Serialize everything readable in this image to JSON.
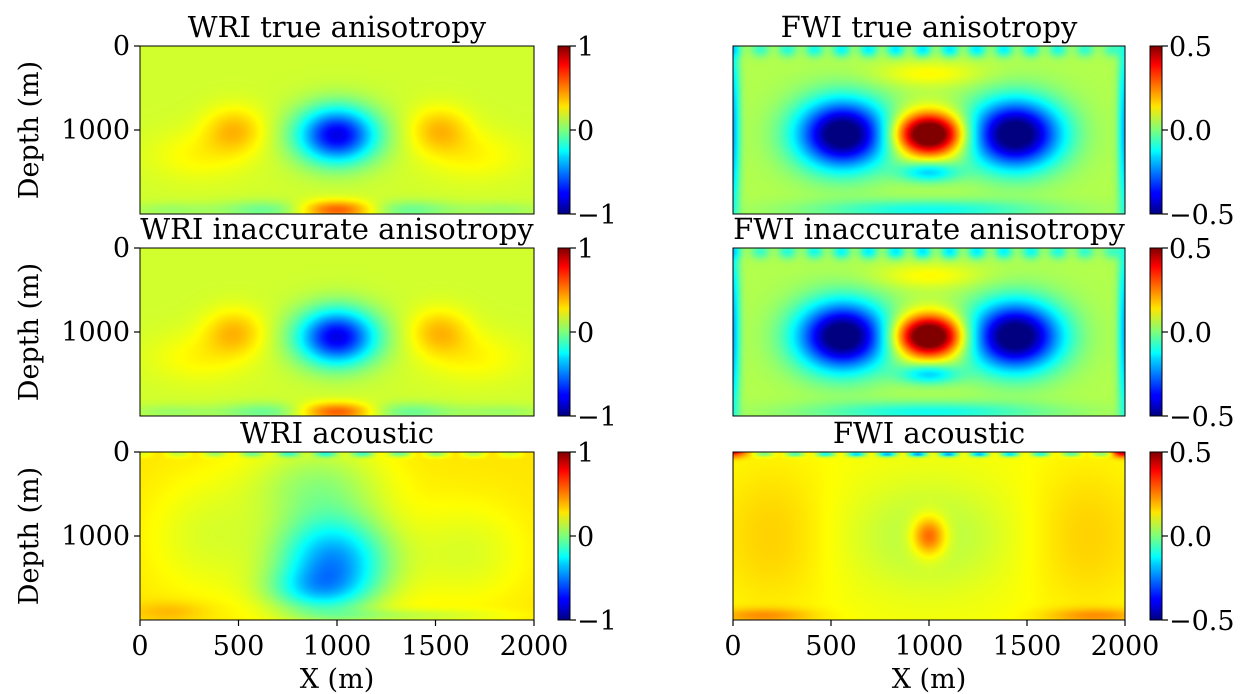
{
  "colormap": "jet",
  "chart_data": [
    {
      "type": "heatmap",
      "field": "wri_a",
      "title": "WRI true anisotropy",
      "ylabel": "Depth (m)",
      "xlabel": "",
      "xlim": [
        0,
        2000
      ],
      "ylim": [
        2000,
        0
      ],
      "yticks": [
        0,
        1000
      ],
      "xticks": [],
      "colorbar": {
        "range": [
          -1,
          1
        ],
        "ticks": [
          "1",
          "0",
          "−1"
        ]
      },
      "features": [
        {
          "kind": "anomaly",
          "x": 1000,
          "y": 1060,
          "value": -0.95
        },
        {
          "kind": "anomaly",
          "x": 480,
          "y": 1000,
          "value": 0.35
        },
        {
          "kind": "anomaly",
          "x": 1520,
          "y": 1000,
          "value": 0.35
        },
        {
          "kind": "anomaly",
          "x": 1000,
          "y": 1900,
          "value": 0.6
        }
      ]
    },
    {
      "type": "heatmap",
      "field": "fwi_a",
      "title": "FWI true anisotropy",
      "ylabel": "",
      "xlabel": "",
      "xlim": [
        0,
        2000
      ],
      "ylim": [
        2000,
        0
      ],
      "yticks": [],
      "xticks": [],
      "colorbar": {
        "range": [
          -0.5,
          0.5
        ],
        "ticks": [
          "0.5",
          "0.0",
          "−0.5"
        ]
      },
      "features": [
        {
          "kind": "anomaly",
          "x": 1000,
          "y": 1050,
          "value": 0.5
        },
        {
          "kind": "anomaly",
          "x": 550,
          "y": 1050,
          "value": -0.5
        },
        {
          "kind": "anomaly",
          "x": 1450,
          "y": 1050,
          "value": -0.5
        },
        {
          "kind": "anomaly",
          "x": 1000,
          "y": 80,
          "value": -0.25
        }
      ]
    },
    {
      "type": "heatmap",
      "field": "wri_a",
      "title": "WRI inaccurate anisotropy",
      "ylabel": "Depth (m)",
      "xlabel": "",
      "xlim": [
        0,
        2000
      ],
      "ylim": [
        2000,
        0
      ],
      "yticks": [
        0,
        1000
      ],
      "xticks": [],
      "colorbar": {
        "range": [
          -1,
          1
        ],
        "ticks": [
          "1",
          "0",
          "−1"
        ]
      },
      "features": [
        {
          "kind": "anomaly",
          "x": 1000,
          "y": 1060,
          "value": -0.95
        },
        {
          "kind": "anomaly",
          "x": 480,
          "y": 1000,
          "value": 0.35
        },
        {
          "kind": "anomaly",
          "x": 1520,
          "y": 1000,
          "value": 0.35
        },
        {
          "kind": "anomaly",
          "x": 1000,
          "y": 1900,
          "value": 0.6
        }
      ]
    },
    {
      "type": "heatmap",
      "field": "fwi_a",
      "title": "FWI inaccurate anisotropy",
      "ylabel": "",
      "xlabel": "",
      "xlim": [
        0,
        2000
      ],
      "ylim": [
        2000,
        0
      ],
      "yticks": [],
      "xticks": [],
      "colorbar": {
        "range": [
          -0.5,
          0.5
        ],
        "ticks": [
          "0.5",
          "0.0",
          "−0.5"
        ]
      },
      "features": [
        {
          "kind": "anomaly",
          "x": 1000,
          "y": 1050,
          "value": 0.5
        },
        {
          "kind": "anomaly",
          "x": 550,
          "y": 1050,
          "value": -0.5
        },
        {
          "kind": "anomaly",
          "x": 1450,
          "y": 1050,
          "value": -0.5
        },
        {
          "kind": "anomaly",
          "x": 1000,
          "y": 80,
          "value": -0.25
        }
      ]
    },
    {
      "type": "heatmap",
      "field": "wri_ac",
      "title": "WRI acoustic",
      "ylabel": "Depth (m)",
      "xlabel": "X (m)",
      "xlim": [
        0,
        2000
      ],
      "ylim": [
        2000,
        0
      ],
      "yticks": [
        0,
        1000
      ],
      "xticks": [
        0,
        500,
        1000,
        1500,
        2000
      ],
      "colorbar": {
        "range": [
          -1,
          1
        ],
        "ticks": [
          "1",
          "0",
          "−1"
        ]
      },
      "features": [
        {
          "kind": "anomaly",
          "x": 950,
          "y": 1350,
          "value": -0.9
        },
        {
          "kind": "anomaly",
          "x": 150,
          "y": 1850,
          "value": 0.4
        }
      ]
    },
    {
      "type": "heatmap",
      "field": "fwi_ac",
      "title": "FWI acoustic",
      "ylabel": "",
      "xlabel": "X (m)",
      "xlim": [
        0,
        2000
      ],
      "ylim": [
        2000,
        0
      ],
      "yticks": [],
      "xticks": [
        0,
        500,
        1000,
        1500,
        2000
      ],
      "colorbar": {
        "range": [
          -0.5,
          0.5
        ],
        "ticks": [
          "0.5",
          "0.0",
          "−0.5"
        ]
      },
      "features": [
        {
          "kind": "anomaly",
          "x": 1000,
          "y": 1000,
          "value": 0.3
        },
        {
          "kind": "anomaly",
          "x": 20,
          "y": 20,
          "value": 0.5
        },
        {
          "kind": "anomaly",
          "x": 1980,
          "y": 20,
          "value": 0.5
        }
      ]
    }
  ]
}
